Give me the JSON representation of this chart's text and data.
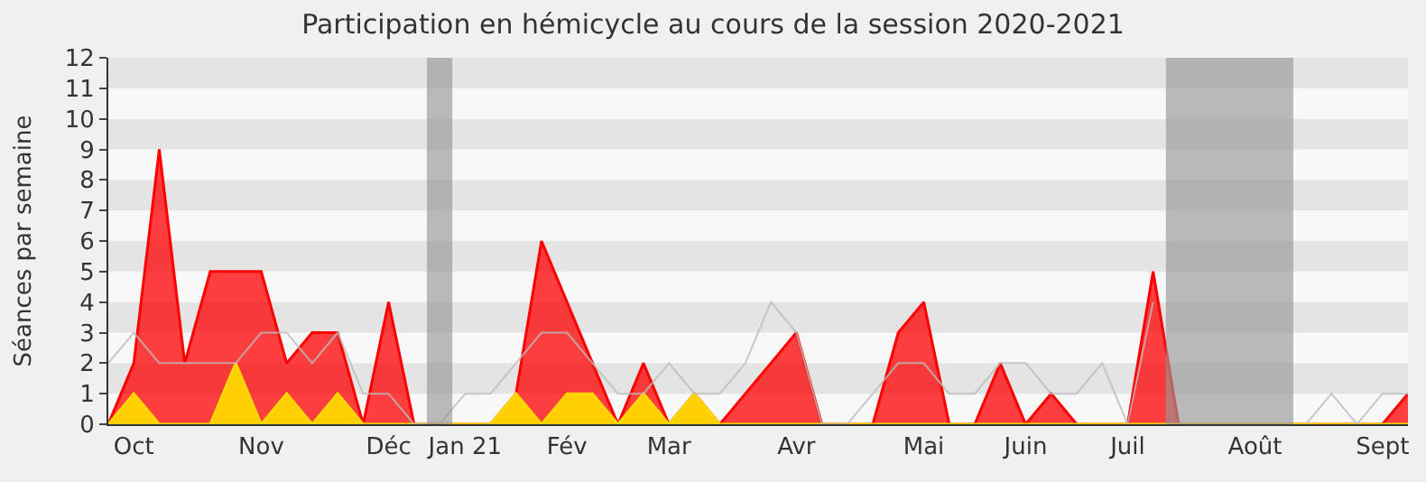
{
  "chart_data": {
    "type": "area",
    "title": "Participation en hémicycle au cours de la session 2020-2021",
    "ylabel": "Séances par semaine",
    "categories": [
      null,
      "Oct",
      null,
      null,
      null,
      null,
      "Nov",
      null,
      null,
      null,
      null,
      "Déc",
      null,
      null,
      "Jan 21",
      null,
      null,
      null,
      "Fév",
      null,
      null,
      null,
      "Mar",
      null,
      null,
      null,
      null,
      "Avr",
      null,
      null,
      null,
      null,
      "Mai",
      null,
      null,
      null,
      "Juin",
      null,
      null,
      null,
      "Juil",
      null,
      null,
      null,
      null,
      "Août",
      null,
      null,
      null,
      null,
      "Sept",
      null
    ],
    "series": [
      {
        "type": "line",
        "color": "#bbbbbb",
        "values": [
          2,
          3,
          2,
          2,
          2,
          2,
          3,
          3,
          2,
          3,
          1,
          1,
          0,
          0,
          1,
          1,
          2,
          3,
          3,
          2,
          1,
          1,
          2,
          1,
          1,
          2,
          4,
          3,
          0,
          0,
          1,
          2,
          2,
          1,
          1,
          2,
          2,
          1,
          1,
          2,
          0,
          4,
          null,
          null,
          null,
          null,
          null,
          0,
          1,
          0,
          1,
          1
        ]
      },
      {
        "color": "#ff0000",
        "values": [
          0,
          2,
          9,
          2,
          5,
          5,
          5,
          2,
          3,
          3,
          0,
          4,
          0,
          0,
          0,
          0,
          1,
          6,
          4,
          2,
          0,
          2,
          0,
          1,
          0,
          1,
          2,
          3,
          0,
          0,
          0,
          3,
          4,
          0,
          0,
          2,
          0,
          1,
          0,
          0,
          0,
          5,
          0,
          0,
          0,
          0,
          0,
          0,
          0,
          0,
          0,
          1
        ]
      },
      {
        "color": "#ffd700",
        "values": [
          0,
          1,
          0,
          0,
          0,
          2,
          0,
          1,
          0,
          1,
          0,
          0,
          0,
          0,
          0,
          0,
          1,
          0,
          1,
          1,
          0,
          1,
          0,
          1,
          0,
          0,
          0,
          0,
          0,
          0,
          0,
          0,
          0,
          0,
          0,
          0,
          0,
          0,
          0,
          0,
          0,
          0,
          0,
          0,
          0,
          0,
          0,
          0,
          0,
          0,
          0,
          0
        ]
      }
    ],
    "ylim": [
      0,
      12
    ],
    "yticks": [
      0,
      1,
      2,
      3,
      4,
      5,
      6,
      7,
      8,
      9,
      10,
      11,
      12
    ],
    "grid": false
  }
}
